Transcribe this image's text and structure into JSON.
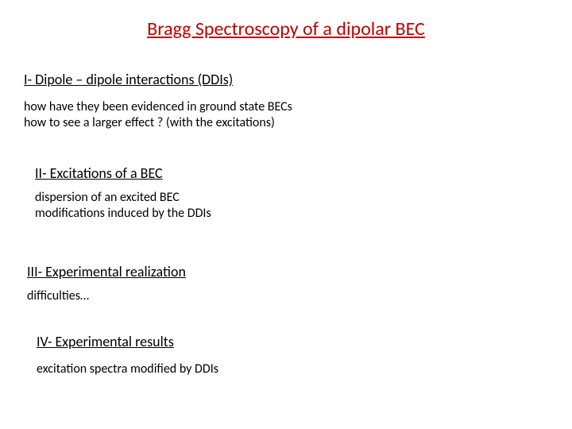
{
  "title": "Bragg Spectroscopy of a dipolar BEC",
  "sections": [
    {
      "heading": "I- Dipole – dipole interactions (DDIs)",
      "lines": [
        "how have they been evidenced in ground state BECs",
        "how to see a larger effect ? (with the excitations)"
      ]
    },
    {
      "heading": "II- Excitations of a BEC",
      "lines": [
        "dispersion of an excited BEC",
        "modifications induced by the DDIs"
      ]
    },
    {
      "heading": "III- Experimental realization",
      "lines": [
        "difficulties…"
      ]
    },
    {
      "heading": "IV- Experimental results",
      "lines": [
        "excitation spectra modified by DDIs"
      ]
    }
  ],
  "colors": {
    "title": "#c00000",
    "text": "#000000",
    "background": "#ffffff"
  },
  "typography": {
    "title_fontsize": 24,
    "heading_fontsize": 18,
    "body_fontsize": 16,
    "font_family": "Calibri"
  }
}
